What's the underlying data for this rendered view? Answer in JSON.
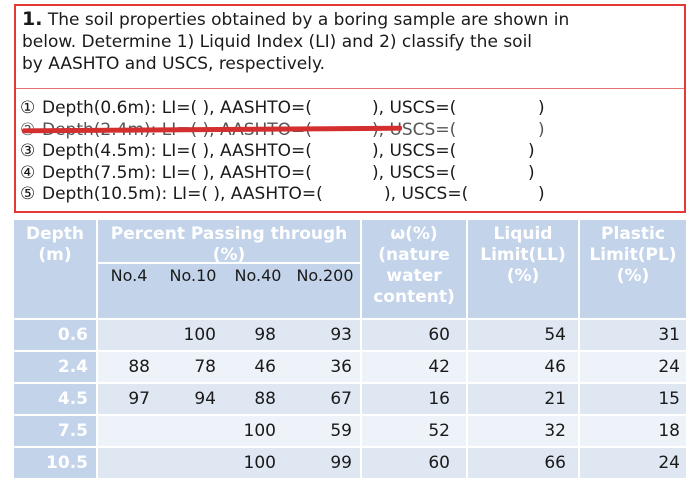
{
  "question": {
    "number": "1.",
    "line1": "The soil properties obtained by a boring sample are shown in",
    "line2": "below. Determine 1) Liquid Index (LI) and 2) classify the soil",
    "line3": "by AASHTO and USCS, respectively."
  },
  "answers": [
    {
      "circle": "①",
      "text": "Depth(0.6m): LI=(    ), AASHTO=(",
      "mid": "), USCS=(",
      "end": ")"
    },
    {
      "circle": "②",
      "text": "Depth(2.4m): LI=(    ), AASHTO=(",
      "mid": "), USCS=(",
      "end": ")"
    },
    {
      "circle": "③",
      "text": "Depth(4.5m): LI=(    ), AASHTO=(",
      "mid": "), USCS=(",
      "end": ")"
    },
    {
      "circle": "④",
      "text": "Depth(7.5m): LI=(    ), AASHTO=(",
      "mid": "), USCS=(",
      "end": ")"
    },
    {
      "circle": "⑤",
      "text": "Depth(10.5m): LI=(    ), AASHTO=(",
      "mid": "), USCS=(",
      "end": ")"
    }
  ],
  "table": {
    "headers": {
      "depth": [
        "Depth",
        "(m)"
      ],
      "percent": [
        "Percent Passing through",
        "(%)"
      ],
      "sieves": [
        "No.4",
        "No.10",
        "No.40",
        "No.200"
      ],
      "water": [
        "ω(%)",
        "(nature",
        "water",
        "content)"
      ],
      "ll": [
        "Liquid",
        "Limit(LL)",
        "(%)"
      ],
      "pl": [
        "Plastic",
        "Limit(PL)",
        "(%)"
      ]
    },
    "rows": [
      {
        "depth": "0.6",
        "no4": "",
        "no10": "100",
        "no40": "98",
        "no200": "93",
        "w": "60",
        "ll": "54",
        "pl": "31"
      },
      {
        "depth": "2.4",
        "no4": "88",
        "no10": "78",
        "no40": "46",
        "no200": "36",
        "w": "42",
        "ll": "46",
        "pl": "24"
      },
      {
        "depth": "4.5",
        "no4": "97",
        "no10": "94",
        "no40": "88",
        "no200": "67",
        "w": "16",
        "ll": "21",
        "pl": "15"
      },
      {
        "depth": "7.5",
        "no4": "",
        "no10": "",
        "no40": "100",
        "no200": "59",
        "w": "52",
        "ll": "32",
        "pl": "18"
      },
      {
        "depth": "10.5",
        "no4": "",
        "no10": "",
        "no40": "100",
        "no200": "99",
        "w": "60",
        "ll": "66",
        "pl": "24"
      }
    ]
  },
  "colors": {
    "header_bg": "#c3d3ea",
    "row_a": "#dfe7f3",
    "row_b": "#eef2f9",
    "box_border": "#e53935",
    "strike": "#d32f2f"
  }
}
